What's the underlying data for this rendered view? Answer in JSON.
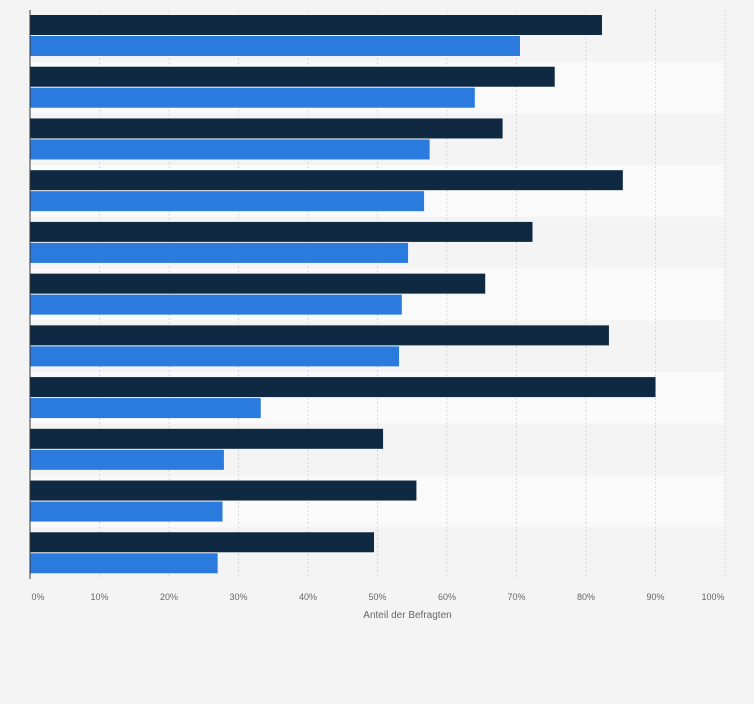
{
  "chart_data": {
    "type": "bar",
    "orientation": "horizontal",
    "categories": [
      "",
      "",
      "",
      "",
      "",
      "",
      "",
      "",
      "",
      "",
      ""
    ],
    "series": [
      {
        "values": [
          82.3,
          75.5,
          68.0,
          85.3,
          72.3,
          65.5,
          83.3,
          90.0,
          50.8,
          55.6,
          49.5
        ]
      },
      {
        "values": [
          70.5,
          64.0,
          57.5,
          56.7,
          54.4,
          53.5,
          53.1,
          33.2,
          27.9,
          27.7,
          27.0
        ]
      }
    ],
    "colors": [
      "#0f2942",
      "#2b7bdf"
    ],
    "xlim": [
      0,
      100
    ],
    "xticks": [
      "0%",
      "10%",
      "20%",
      "30%",
      "40%",
      "50%",
      "60%",
      "70%",
      "80%",
      "90%",
      "100%"
    ],
    "xlabel": "Anteil der Befragten",
    "ylabel": "",
    "grid": true,
    "legend": "none",
    "title": ""
  }
}
